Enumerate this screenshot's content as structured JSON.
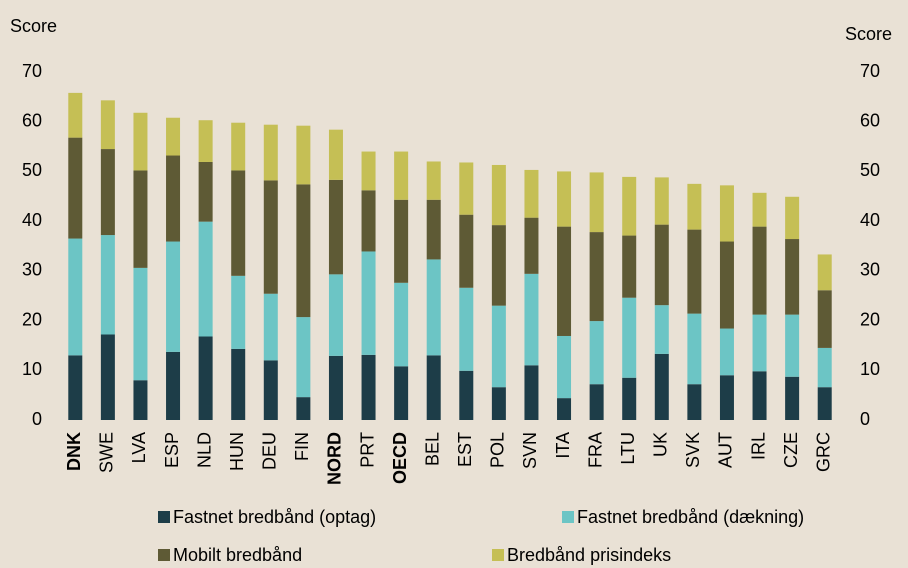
{
  "chart_data": {
    "type": "stacked_bar",
    "ylabel": "Score",
    "y2label": "Score",
    "categories": [
      "DNK",
      "SWE",
      "LVA",
      "ESP",
      "NLD",
      "HUN",
      "DEU",
      "FIN",
      "NORD",
      "PRT",
      "OECD",
      "BEL",
      "EST",
      "POL",
      "SVN",
      "ITA",
      "FRA",
      "LTU",
      "UK",
      "SVK",
      "AUT",
      "IRL",
      "CZE",
      "GRC"
    ],
    "highlight": [
      "DNK",
      "NORD",
      "OECD"
    ],
    "series": [
      {
        "name": "Fastnet bredbånd (optag)",
        "color": "#1d3d48",
        "values": [
          13,
          17.2,
          8,
          13.7,
          16.8,
          14.3,
          12,
          4.6,
          12.9,
          13.1,
          10.8,
          13,
          9.9,
          6.6,
          11,
          4.4,
          7.2,
          8.5,
          13.3,
          7.2,
          9,
          9.8,
          8.7,
          6.6
        ]
      },
      {
        "name": "Fastnet bredbånd (dækning)",
        "color": "#6cc5c5",
        "values": [
          23.5,
          20,
          22.6,
          22.2,
          23.1,
          14.7,
          13.4,
          16.1,
          16.4,
          20.8,
          16.8,
          19.3,
          16.7,
          16.4,
          18.4,
          12.5,
          12.7,
          16.1,
          9.8,
          14.2,
          9.4,
          11.4,
          12.5,
          7.9
        ]
      },
      {
        "name": "Mobilt bredbånd",
        "color": "#5e5a35",
        "values": [
          20.3,
          17.3,
          19.6,
          17.3,
          12,
          21.2,
          22.8,
          26.7,
          19,
          12.3,
          16.7,
          12,
          14.7,
          16.2,
          11.3,
          22,
          17.9,
          12.5,
          16.2,
          16.9,
          17.5,
          17.7,
          15.2,
          11.6
        ]
      },
      {
        "name": "Bredbånd prisindeks",
        "color": "#c5bf55",
        "values": [
          9,
          9.8,
          11.6,
          7.6,
          8.4,
          9.6,
          11.2,
          11.8,
          10.1,
          7.8,
          9.7,
          7.7,
          10.5,
          12.1,
          9.6,
          11.1,
          12,
          11.8,
          9.5,
          9.2,
          11.3,
          6.8,
          8.5,
          7.2
        ]
      }
    ],
    "ylim": [
      0,
      70
    ],
    "yticks": [
      0,
      10,
      20,
      30,
      40,
      50,
      60,
      70
    ],
    "y2lim": [
      0,
      70
    ],
    "y2ticks": [
      0,
      10,
      20,
      30,
      40,
      50,
      60,
      70
    ],
    "grid": false
  }
}
